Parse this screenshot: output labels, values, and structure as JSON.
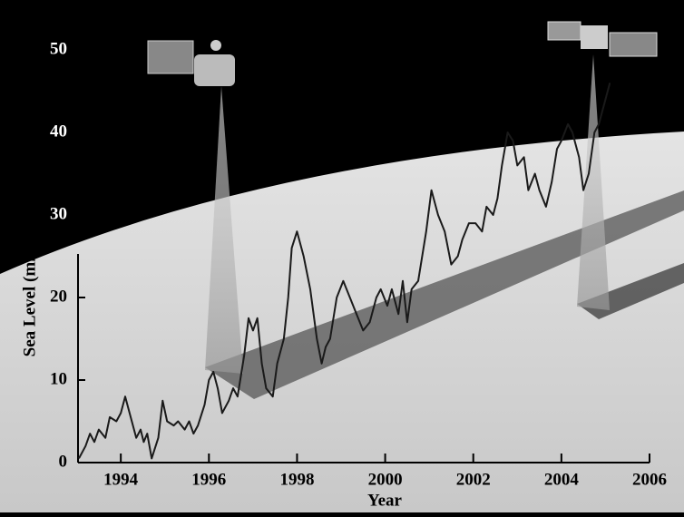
{
  "chart_data": {
    "type": "line",
    "x_label": "Year",
    "y_label": "Sea Level (mm)",
    "x": [
      1993.05,
      1993.2,
      1993.3,
      1993.4,
      1993.5,
      1993.65,
      1993.75,
      1993.9,
      1994.0,
      1994.1,
      1994.25,
      1994.35,
      1994.45,
      1994.52,
      1994.6,
      1994.7,
      1994.85,
      1994.95,
      1995.05,
      1995.2,
      1995.3,
      1995.45,
      1995.55,
      1995.65,
      1995.75,
      1995.9,
      1996.0,
      1996.1,
      1996.2,
      1996.3,
      1996.45,
      1996.55,
      1996.65,
      1996.8,
      1996.9,
      1997.0,
      1997.1,
      1997.2,
      1997.3,
      1997.45,
      1997.55,
      1997.7,
      1997.8,
      1997.88,
      1998.0,
      1998.15,
      1998.3,
      1998.45,
      1998.56,
      1998.65,
      1998.75,
      1998.9,
      1999.05,
      1999.2,
      1999.35,
      1999.5,
      1999.65,
      1999.8,
      1999.9,
      2000.05,
      2000.15,
      2000.3,
      2000.4,
      2000.5,
      2000.6,
      2000.75,
      2000.93,
      2001.05,
      2001.2,
      2001.35,
      2001.5,
      2001.65,
      2001.75,
      2001.9,
      2002.05,
      2002.2,
      2002.3,
      2002.45,
      2002.55,
      2002.65,
      2002.78,
      2002.9,
      2003.0,
      2003.15,
      2003.25,
      2003.4,
      2003.5,
      2003.65,
      2003.78,
      2003.9,
      2004.0,
      2004.15,
      2004.25,
      2004.4,
      2004.5,
      2004.62,
      2004.75,
      2004.85,
      2004.95,
      2005.1
    ],
    "values": [
      0.5,
      2,
      3.5,
      2.5,
      4,
      3,
      5.5,
      5,
      6,
      8,
      5,
      3,
      4,
      2.5,
      3.5,
      0.5,
      3,
      7.5,
      5,
      4.5,
      5,
      4,
      5,
      3.5,
      4.5,
      7,
      10,
      11,
      9,
      6,
      7.5,
      9,
      8,
      13,
      17.5,
      16,
      17.5,
      12,
      9,
      8,
      12,
      15,
      20,
      26,
      28,
      25,
      21,
      15,
      12,
      14,
      15,
      20,
      22,
      20,
      18,
      16,
      17,
      20,
      21,
      19,
      21,
      18,
      22,
      17,
      21,
      22,
      28,
      33,
      30,
      28,
      24,
      25,
      27,
      29,
      29,
      28,
      31,
      30,
      32,
      36,
      40,
      39,
      36,
      37,
      33,
      35,
      33,
      31,
      34,
      38,
      39,
      41,
      40,
      37,
      33,
      35,
      40,
      41,
      43,
      46
    ],
    "color": "#1a1a1a",
    "xlim": [
      1993,
      2006
    ],
    "xticks": [
      1994,
      1996,
      1998,
      2000,
      2002,
      2004,
      2006
    ],
    "ylim": [
      0,
      50
    ],
    "yticks": [
      0,
      10,
      20,
      30,
      40,
      50
    ]
  }
}
